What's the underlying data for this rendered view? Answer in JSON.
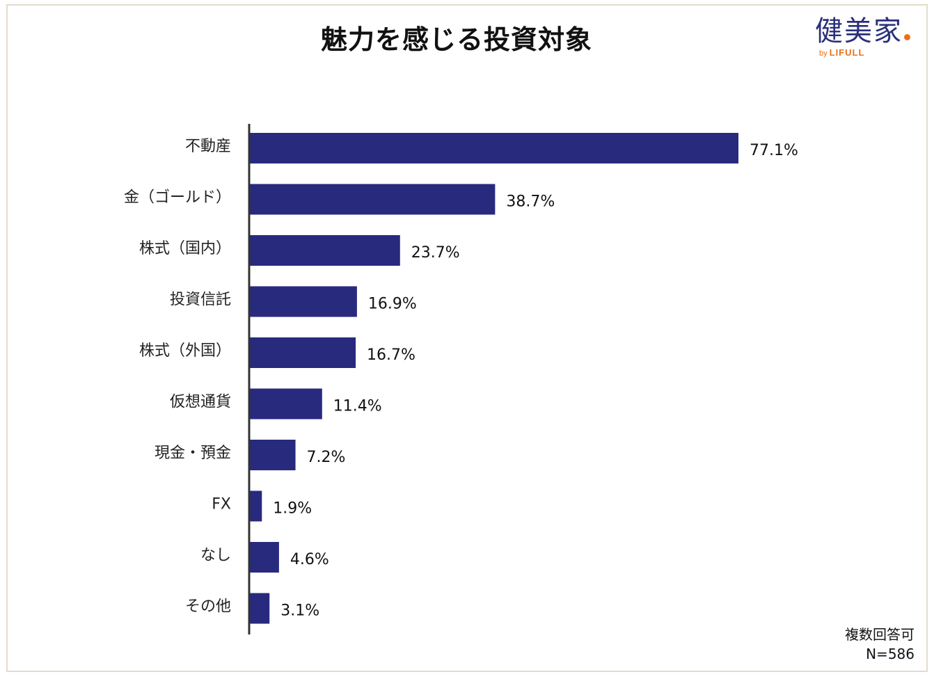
{
  "title": "魅力を感じる投資対象",
  "logo": {
    "main": "健美家",
    "by": "by",
    "sub": "LIFULL",
    "accent_color": "#e8711c",
    "brand_color": "#2a2f7a"
  },
  "notes": {
    "multiple": "複数回答可",
    "n": "N=586"
  },
  "chart_data": {
    "type": "bar",
    "orientation": "horizontal",
    "title": "魅力を感じる投資対象",
    "categories": [
      "不動産",
      "金（ゴールド）",
      "株式（国内）",
      "投資信託",
      "株式（外国）",
      "仮想通貨",
      "現金・預金",
      "FX",
      "なし",
      "その他"
    ],
    "values": [
      77.1,
      38.7,
      23.7,
      16.9,
      16.7,
      11.4,
      7.2,
      1.9,
      4.6,
      3.1
    ],
    "value_labels": [
      "77.1%",
      "38.7%",
      "23.7%",
      "16.9%",
      "16.7%",
      "11.4%",
      "7.2%",
      "1.9%",
      "4.6%",
      "3.1%"
    ],
    "unit": "%",
    "xlim": [
      0,
      100
    ],
    "grid": false,
    "bar_color": "#282a7e",
    "axis_color": "#333333"
  }
}
